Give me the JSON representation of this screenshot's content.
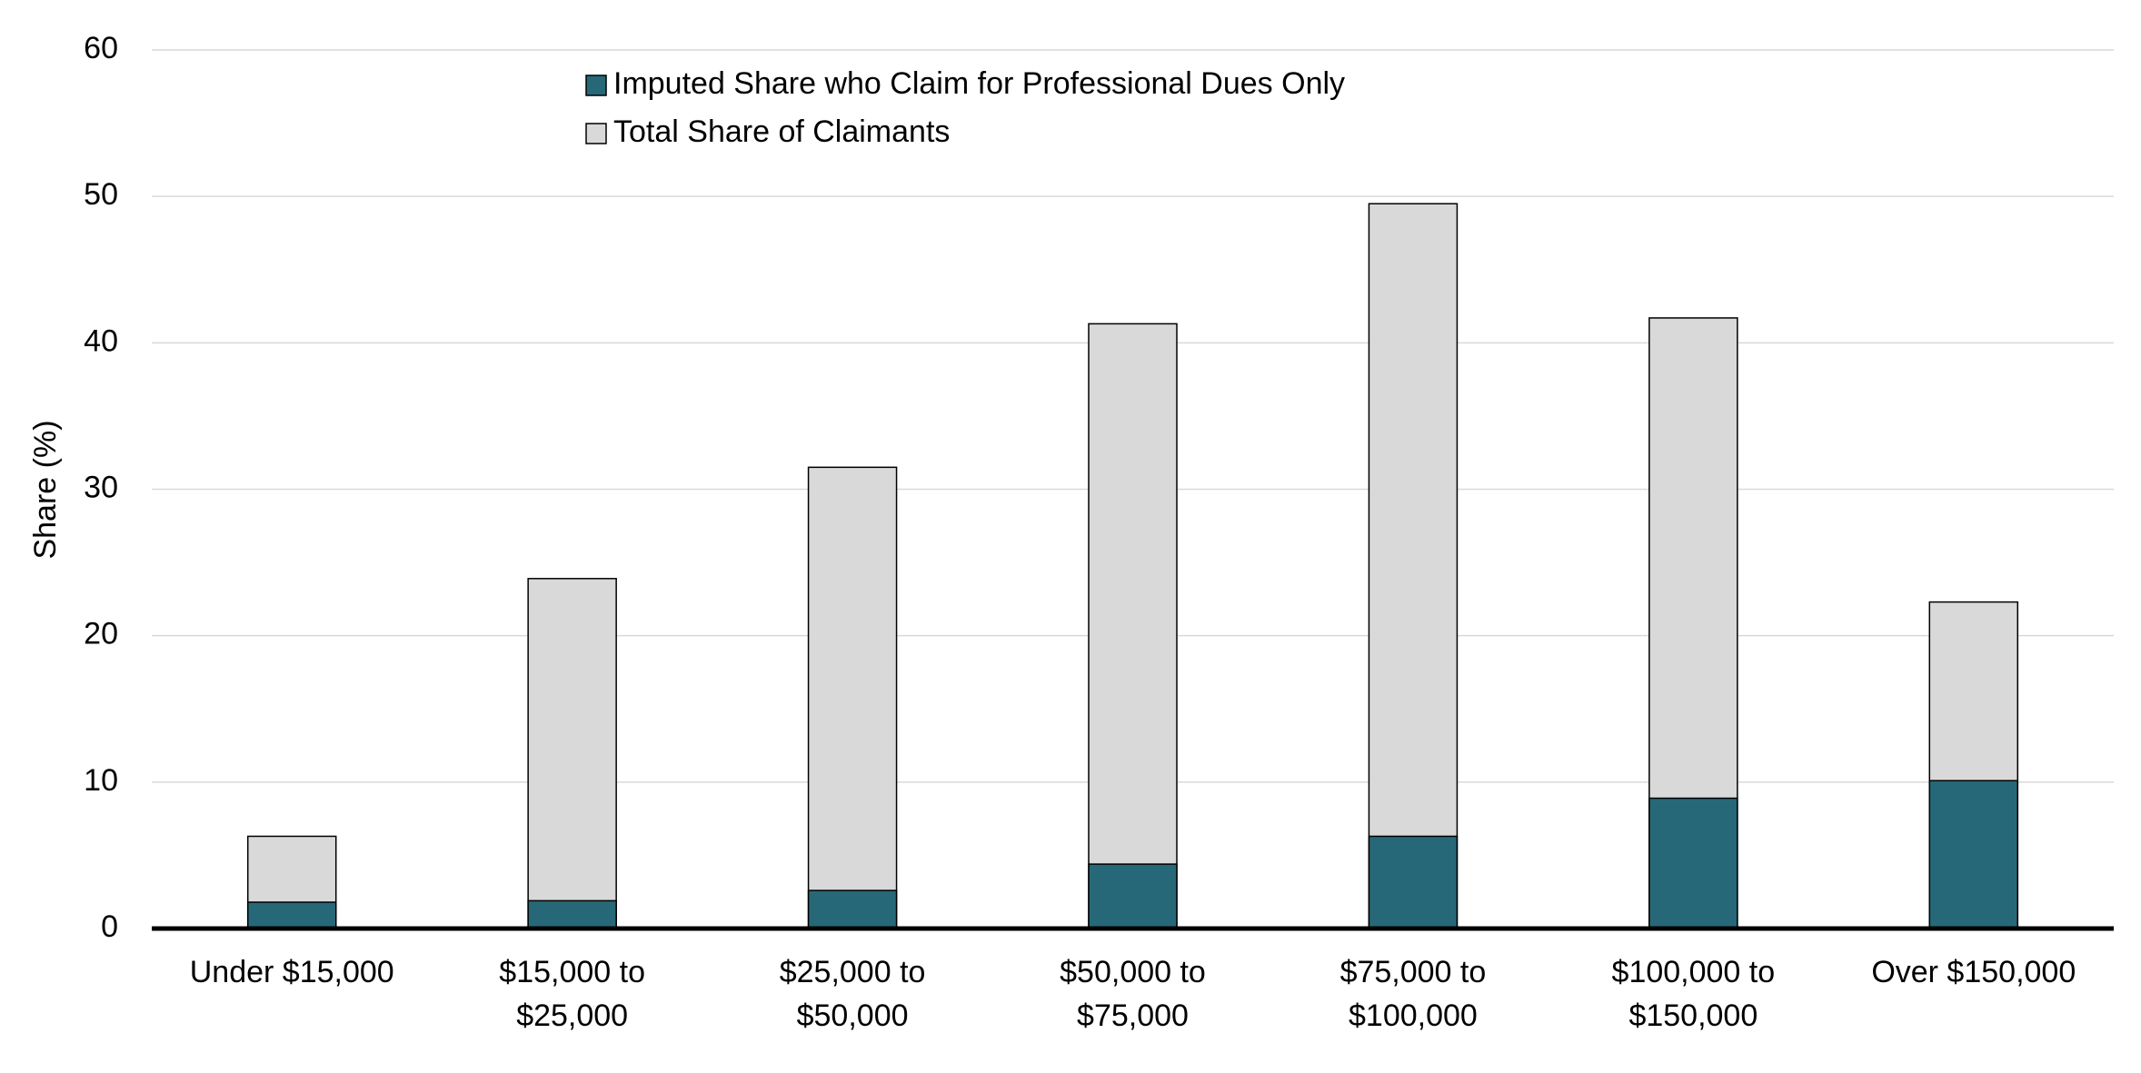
{
  "chart_data": {
    "type": "overlapping_bar",
    "y_axis_label": "Share (%)",
    "categories": [
      [
        "Under $15,000"
      ],
      [
        "$15,000 to",
        "$25,000"
      ],
      [
        "$25,000 to",
        "$50,000"
      ],
      [
        "$50,000 to",
        "$75,000"
      ],
      [
        "$75,000 to",
        "$100,000"
      ],
      [
        "$100,000 to",
        "$150,000"
      ],
      [
        "Over $150,000"
      ]
    ],
    "series": [
      {
        "name": "Imputed Share who Claim for Professional Dues Only",
        "color": "#276878",
        "values": [
          1.8,
          1.9,
          2.6,
          4.4,
          6.3,
          8.9,
          10.1
        ]
      },
      {
        "name": "Total Share of Claimants",
        "color": "#d9d9d9",
        "values": [
          6.3,
          23.9,
          31.5,
          41.3,
          49.5,
          41.7,
          22.3
        ]
      }
    ],
    "ylim": [
      0,
      60
    ],
    "yticks": [
      0,
      10,
      20,
      30,
      40,
      50,
      60
    ],
    "grid": true,
    "legend": "top"
  }
}
